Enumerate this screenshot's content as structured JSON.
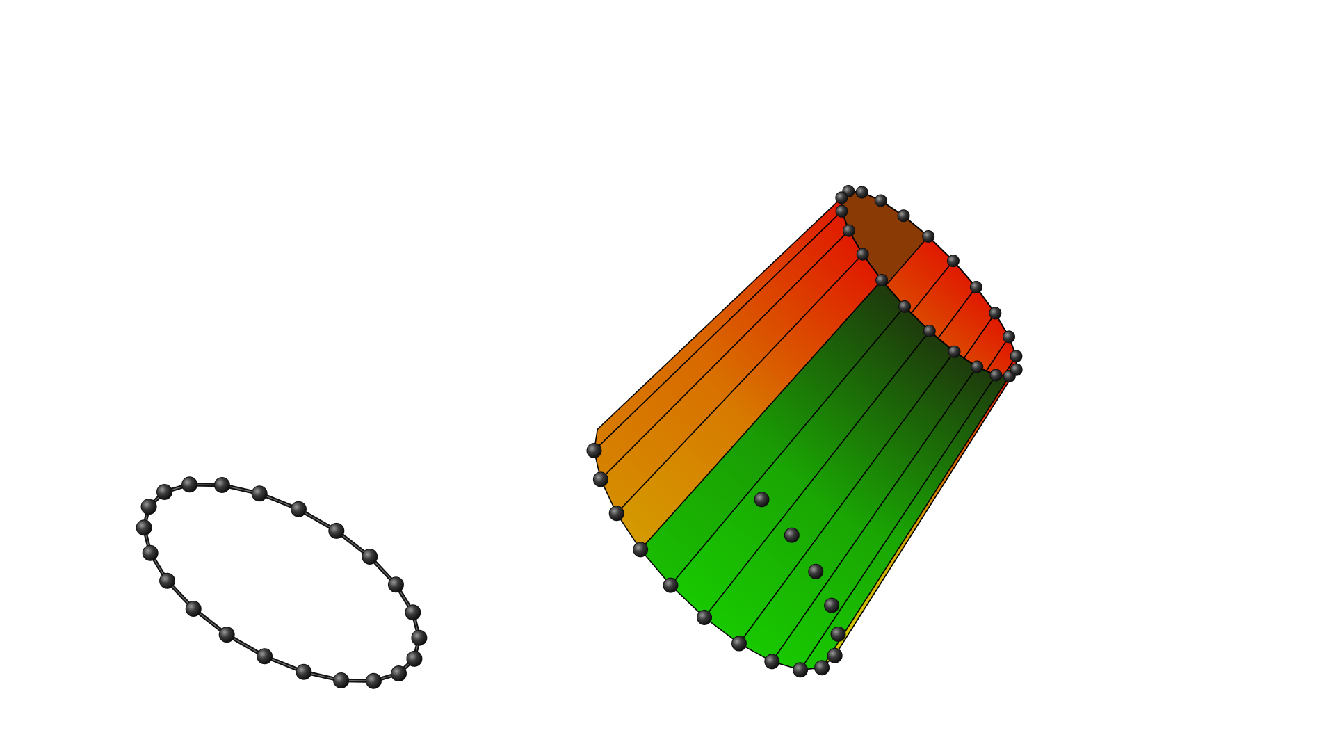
{
  "scene": {
    "background": "#ffffff",
    "ring": {
      "node_count": 22,
      "edge_color": "#111111",
      "node_color": "#3a3a3a"
    },
    "tube": {
      "node_count_per_ring": 22,
      "colors": {
        "red": "#e01a00",
        "orange": "#d49a00",
        "yellow": "#cfd000",
        "green": "#18c800",
        "dark": "#1e3a0c",
        "edge": "#000000",
        "node": "#3a3a3a"
      }
    }
  }
}
